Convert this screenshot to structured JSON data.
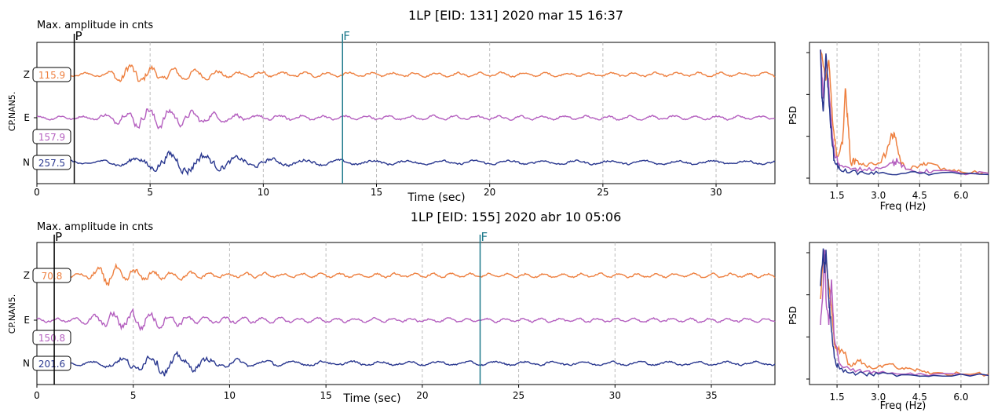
{
  "figure": {
    "panels": [
      {
        "title": "1LP [EID: 131] 2020 mar 15 16:37",
        "amp_label": "Max. amplitude in cnts",
        "station_label": "CP.NAN5.",
        "xlabel": "Time (sec)",
        "psd_ylabel": "PSD",
        "psd_xlabel": "Freq (Hz)"
      },
      {
        "title": "1LP [EID: 155] 2020 abr 10 05:06",
        "amp_label": "Max. amplitude in cnts",
        "station_label": "CP.NAN5.",
        "xlabel": "Time (sec)",
        "psd_ylabel": "PSD",
        "psd_xlabel": "Freq (Hz)"
      }
    ]
  },
  "chart_data": [
    {
      "type": "line",
      "title": "1LP [EID: 131] 2020 mar 15 16:37",
      "xlabel": "Time (sec)",
      "ylabel": "CP.NAN5.",
      "annotation": "Max. amplitude in cnts",
      "xlim": [
        0,
        32.6
      ],
      "xticks": [
        0,
        5,
        10,
        15,
        20,
        25,
        30
      ],
      "grid": "vertical dashed",
      "picks": [
        {
          "label": "P",
          "x": 1.65,
          "color": "#000000"
        },
        {
          "label": "F",
          "x": 13.5,
          "color": "#1f7a8c"
        }
      ],
      "series": [
        {
          "name": "Z",
          "max_amplitude": "115.9",
          "color": "#ee8040",
          "event_start": 3.0,
          "event_peak": 4.0
        },
        {
          "name": "E",
          "max_amplitude": "157.9",
          "color": "#b45fbf",
          "event_start": 2.5,
          "event_peak": 5.0
        },
        {
          "name": "N",
          "max_amplitude": "257.5",
          "color": "#29378f",
          "event_start": 3.0,
          "event_peak": 6.5
        }
      ]
    },
    {
      "type": "line",
      "title": "PSD",
      "xlabel": "Freq (Hz)",
      "ylabel": "PSD",
      "xlim": [
        0.5,
        7.0
      ],
      "xticks": [
        1.5,
        3.0,
        4.5,
        6.0
      ],
      "grid": "vertical dashed",
      "series": [
        {
          "name": "Z",
          "color": "#ee8040",
          "x": [
            0.9,
            1.0,
            1.1,
            1.2,
            1.3,
            1.4,
            1.5,
            1.7,
            1.8,
            1.9,
            2.0,
            2.2,
            2.5,
            3.0,
            3.3,
            3.5,
            3.6,
            3.8,
            4.0,
            4.5,
            4.8,
            5.5,
            6.0,
            7.0
          ],
          "y": [
            0.98,
            0.85,
            0.75,
            0.9,
            0.55,
            0.3,
            0.15,
            0.25,
            0.68,
            0.4,
            0.1,
            0.12,
            0.08,
            0.1,
            0.18,
            0.32,
            0.3,
            0.12,
            0.05,
            0.08,
            0.1,
            0.04,
            0.03,
            0.02
          ]
        },
        {
          "name": "E",
          "color": "#b45fbf",
          "x": [
            0.9,
            1.0,
            1.1,
            1.2,
            1.3,
            1.4,
            1.6,
            2.0,
            2.5,
            3.0,
            3.5,
            3.7,
            4.0,
            4.5,
            5.0,
            6.0,
            7.0
          ],
          "y": [
            0.98,
            0.6,
            0.9,
            0.7,
            0.4,
            0.18,
            0.08,
            0.05,
            0.05,
            0.06,
            0.1,
            0.11,
            0.05,
            0.03,
            0.04,
            0.02,
            0.02
          ]
        },
        {
          "name": "N",
          "color": "#29378f",
          "x": [
            0.9,
            0.95,
            1.0,
            1.1,
            1.2,
            1.3,
            1.4,
            1.6,
            2.0,
            2.5,
            3.0,
            4.0,
            5.0,
            7.0
          ],
          "y": [
            0.98,
            0.6,
            0.5,
            0.95,
            0.6,
            0.3,
            0.12,
            0.05,
            0.03,
            0.02,
            0.02,
            0.02,
            0.015,
            0.01
          ]
        }
      ]
    },
    {
      "type": "line",
      "title": "1LP [EID: 155] 2020 abr 10 05:06",
      "xlabel": "Time (sec)",
      "ylabel": "CP.NAN5.",
      "annotation": "Max. amplitude in cnts",
      "xlim": [
        0,
        38.3
      ],
      "xticks": [
        0,
        5,
        10,
        15,
        20,
        25,
        30,
        35
      ],
      "grid": "vertical dashed",
      "picks": [
        {
          "label": "P",
          "x": 0.9,
          "color": "#000000"
        },
        {
          "label": "F",
          "x": 23.0,
          "color": "#1f7a8c"
        }
      ],
      "series": [
        {
          "name": "Z",
          "max_amplitude": "70.8",
          "color": "#ee8040",
          "event_start": 2.5,
          "event_peak": 3.5
        },
        {
          "name": "E",
          "max_amplitude": "150.8",
          "color": "#b45fbf",
          "event_start": 2.0,
          "event_peak": 5.0
        },
        {
          "name": "N",
          "max_amplitude": "201.6",
          "color": "#29378f",
          "event_start": 3.0,
          "event_peak": 6.5
        }
      ]
    },
    {
      "type": "line",
      "title": "PSD",
      "xlabel": "Freq (Hz)",
      "ylabel": "PSD",
      "xlim": [
        0.5,
        7.0
      ],
      "xticks": [
        1.5,
        3.0,
        4.5,
        6.0
      ],
      "grid": "vertical dashed",
      "series": [
        {
          "name": "Z",
          "color": "#ee8040",
          "x": [
            0.9,
            1.0,
            1.1,
            1.2,
            1.3,
            1.4,
            1.5,
            1.7,
            2.0,
            2.3,
            2.6,
            3.0,
            3.4,
            3.8,
            4.2,
            4.6,
            5.0,
            6.0,
            7.0
          ],
          "y": [
            0.6,
            0.95,
            0.9,
            0.7,
            0.55,
            0.25,
            0.2,
            0.2,
            0.08,
            0.12,
            0.07,
            0.08,
            0.1,
            0.06,
            0.06,
            0.04,
            0.03,
            0.02,
            0.02
          ]
        },
        {
          "name": "E",
          "color": "#b45fbf",
          "x": [
            0.9,
            1.0,
            1.05,
            1.1,
            1.2,
            1.3,
            1.4,
            1.6,
            2.0,
            2.5,
            3.0,
            4.0,
            5.0,
            7.0
          ],
          "y": [
            0.4,
            0.7,
            0.98,
            0.6,
            0.4,
            0.75,
            0.3,
            0.1,
            0.05,
            0.04,
            0.03,
            0.02,
            0.02,
            0.01
          ]
        },
        {
          "name": "N",
          "color": "#29378f",
          "x": [
            0.9,
            1.0,
            1.05,
            1.1,
            1.2,
            1.3,
            1.4,
            1.6,
            2.0,
            2.5,
            3.0,
            4.0,
            5.0,
            7.0
          ],
          "y": [
            0.7,
            0.99,
            0.8,
            0.98,
            0.6,
            0.35,
            0.15,
            0.06,
            0.03,
            0.02,
            0.02,
            0.015,
            0.01,
            0.01
          ]
        }
      ]
    }
  ]
}
